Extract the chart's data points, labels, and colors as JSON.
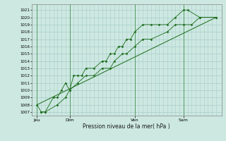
{
  "background_color": "#cce8e0",
  "grid_color": "#aacccc",
  "line_color": "#1a6b1a",
  "marker_color": "#1a6b1a",
  "ylabel_ticks": [
    1007,
    1008,
    1009,
    1010,
    1011,
    1012,
    1013,
    1014,
    1015,
    1016,
    1017,
    1018,
    1019,
    1020,
    1021
  ],
  "ylim": [
    1006.5,
    1021.8
  ],
  "xlabel": "Pression niveau de la mer( hPa )",
  "day_labels": [
    "Jeu",
    "Dim",
    "Ven",
    "Sam"
  ],
  "day_positions": [
    0,
    48,
    144,
    216
  ],
  "xlim": [
    -8,
    272
  ],
  "series1": [
    1008,
    1007,
    1007,
    1009,
    1009,
    1010,
    1011,
    1010,
    1012,
    1012,
    1012,
    1013,
    1013,
    1014,
    1014,
    1015,
    1015,
    1016,
    1016,
    1017,
    1017,
    1018,
    1019,
    1019,
    1019,
    1019,
    1020,
    1021,
    1021,
    1020,
    1020
  ],
  "series1_x": [
    0,
    6,
    12,
    24,
    30,
    36,
    42,
    48,
    54,
    60,
    66,
    72,
    84,
    96,
    102,
    108,
    114,
    120,
    126,
    132,
    138,
    144,
    156,
    168,
    180,
    192,
    204,
    216,
    222,
    240,
    264
  ],
  "series2": [
    1007,
    1007,
    1008,
    1009,
    1010,
    1011,
    1012,
    1012,
    1013,
    1013,
    1014,
    1015,
    1015,
    1016,
    1017,
    1017,
    1018,
    1019,
    1019,
    1019,
    1020,
    1020
  ],
  "series2_x": [
    6,
    12,
    30,
    42,
    48,
    60,
    72,
    84,
    96,
    108,
    114,
    126,
    132,
    144,
    156,
    168,
    192,
    204,
    216,
    228,
    240,
    264
  ],
  "trend_x": [
    0,
    264
  ],
  "trend_y": [
    1008,
    1020
  ]
}
